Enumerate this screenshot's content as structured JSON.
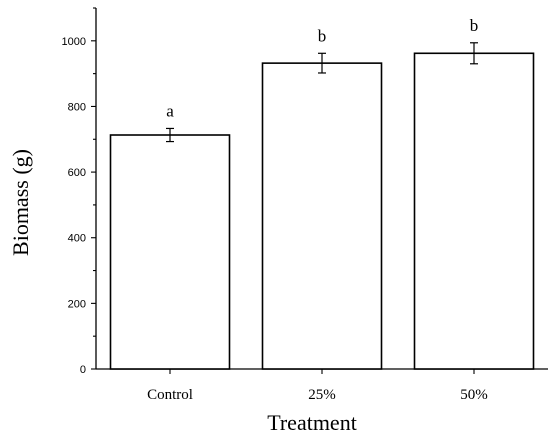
{
  "chart_data": {
    "type": "bar",
    "title": "",
    "xlabel": "Treatment",
    "ylabel": "Biomass (g)",
    "ylim": [
      0,
      1100
    ],
    "yticks": [
      0,
      200,
      400,
      600,
      800,
      1000
    ],
    "categories": [
      "Control",
      "25%",
      "50%"
    ],
    "values": [
      713,
      932,
      962
    ],
    "errors": [
      20,
      30,
      32
    ],
    "significance_labels": [
      "a",
      "b",
      "b"
    ],
    "grid": false,
    "legend": "none"
  }
}
